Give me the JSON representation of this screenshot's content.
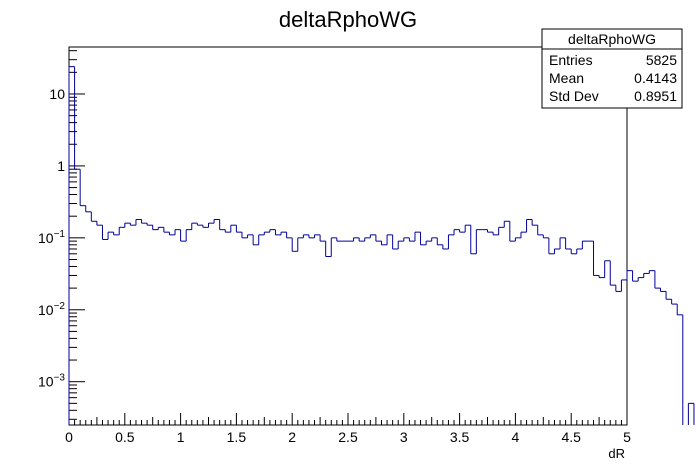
{
  "chart_data": {
    "type": "bar",
    "style": "step-histogram",
    "title": "deltaRphoWG",
    "xlabel": "dR",
    "ylabel": "",
    "xlim": [
      0,
      5
    ],
    "ylim": [
      0.00025,
      45
    ],
    "yscale": "log",
    "line_color": "#000099",
    "bin_width": 0.05,
    "x_ticks": [
      "0",
      "0.5",
      "1",
      "1.5",
      "2",
      "2.5",
      "3",
      "3.5",
      "4",
      "4.5",
      "5"
    ],
    "y_ticks": [
      {
        "mant": "10",
        "exp": "−3",
        "value": 0.001
      },
      {
        "mant": "10",
        "exp": "−2",
        "value": 0.01
      },
      {
        "mant": "10",
        "exp": "−1",
        "value": 0.1
      },
      {
        "mant": "1",
        "exp": "",
        "value": 1
      },
      {
        "mant": "10",
        "exp": "",
        "value": 10
      }
    ],
    "values": [
      24,
      0.9,
      0.28,
      0.23,
      0.17,
      0.15,
      0.095,
      0.12,
      0.11,
      0.14,
      0.16,
      0.15,
      0.18,
      0.16,
      0.15,
      0.13,
      0.14,
      0.12,
      0.11,
      0.13,
      0.09,
      0.13,
      0.16,
      0.15,
      0.14,
      0.16,
      0.18,
      0.13,
      0.12,
      0.15,
      0.12,
      0.1,
      0.11,
      0.08,
      0.11,
      0.12,
      0.13,
      0.11,
      0.12,
      0.1,
      0.065,
      0.1,
      0.11,
      0.1,
      0.11,
      0.09,
      0.055,
      0.1,
      0.09,
      0.09,
      0.09,
      0.1,
      0.09,
      0.1,
      0.11,
      0.09,
      0.08,
      0.11,
      0.07,
      0.09,
      0.1,
      0.09,
      0.12,
      0.08,
      0.09,
      0.1,
      0.08,
      0.07,
      0.11,
      0.13,
      0.12,
      0.15,
      0.06,
      0.13,
      0.13,
      0.12,
      0.11,
      0.14,
      0.17,
      0.09,
      0.1,
      0.12,
      0.18,
      0.15,
      0.11,
      0.1,
      0.06,
      0.07,
      0.1,
      0.07,
      0.06,
      0.07,
      0.09,
      0.09,
      0.03,
      0.028,
      0.048,
      0.022,
      0.018,
      0.026,
      0.035,
      0.025,
      0.028,
      0.032,
      0.035,
      0.02,
      0.018,
      0.014,
      0.012,
      0.0085,
      0.0,
      0.0005,
      0.0,
      0.0045,
      0.0,
      0.0,
      0.0085,
      0.0,
      0.0,
      0.0,
      0.0,
      0.0,
      0.0,
      0.0,
      0.0,
      0.0,
      0.0,
      0.0,
      0.0,
      0.0,
      0.0,
      0.0,
      0.0,
      0.0,
      0.0,
      0.0,
      0.0,
      0.0,
      0.0,
      0.0,
      0.0,
      0.0,
      0.0,
      0.0,
      0.0,
      0.0,
      0.0,
      0.0,
      0.0,
      0.0,
      0.0,
      0.0,
      0.0,
      0.0,
      0.0,
      0.0,
      0.0,
      0.0,
      0.0,
      0.0,
      0.0,
      0.0,
      0.0,
      0.0,
      0.0,
      0.0,
      0.0,
      0.0,
      0.0,
      0.0,
      0.0,
      0.0,
      0.0,
      0.0,
      0.0,
      0.0,
      0.0,
      0.0,
      0.0,
      0.0,
      0.0,
      0.0,
      0.0,
      0.0,
      0.0,
      0.0,
      0.0,
      0.0,
      0.0,
      0.0,
      0.0,
      0.0,
      0.0,
      0.0,
      0.0,
      0.0,
      0.0,
      0.0,
      0.0,
      0.0,
      0.0,
      0.0,
      0.0,
      0.0,
      0.0,
      0.0,
      0.0,
      0.0,
      0.0,
      0.0,
      0.0,
      0.0,
      0.0,
      0.0
    ]
  },
  "stats": {
    "title": "deltaRphoWG",
    "entries_label": "Entries",
    "entries_value": "5825",
    "mean_label": "Mean",
    "mean_value": "0.4143",
    "stddev_label": "Std Dev",
    "stddev_value": "0.8951"
  }
}
